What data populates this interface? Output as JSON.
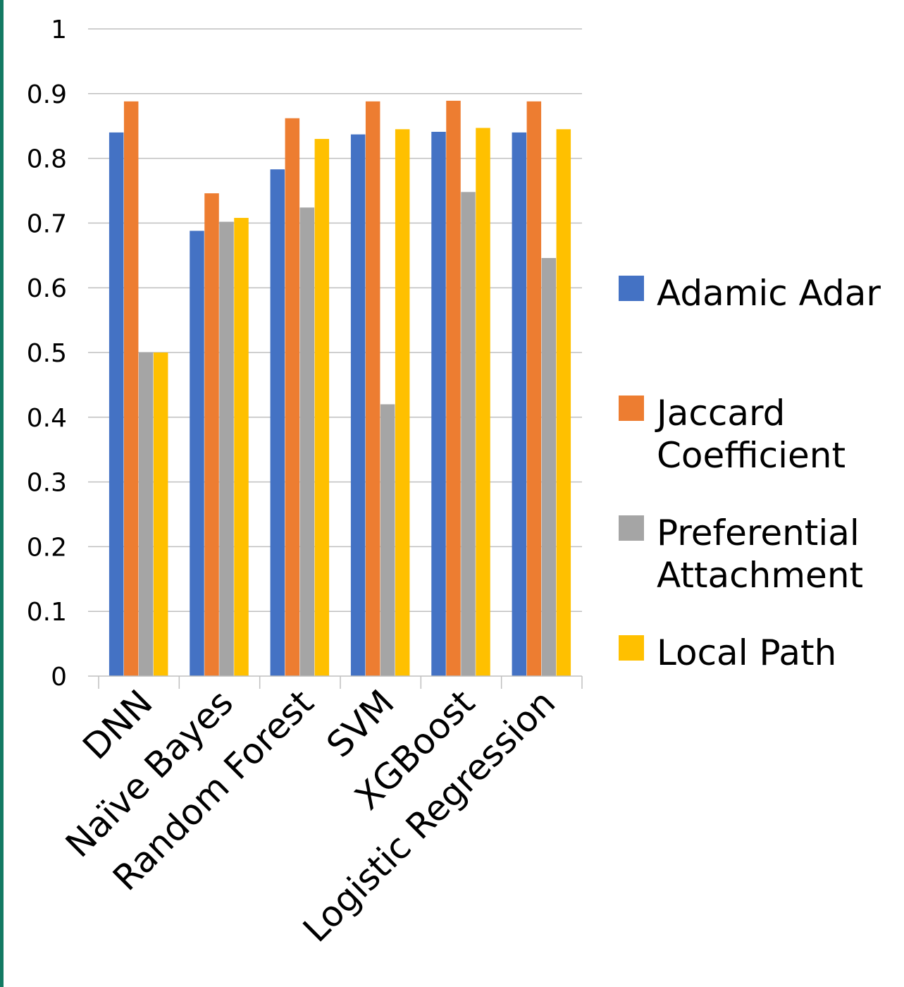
{
  "chart_data": {
    "type": "bar",
    "categories": [
      "DNN",
      "Naïve Bayes",
      "Random Forest",
      "SVM",
      "XGBoost",
      "Logistic Regression"
    ],
    "series": [
      {
        "name": "Adamic Adar",
        "color": "#4472c4",
        "values": [
          0.84,
          0.688,
          0.783,
          0.837,
          0.841,
          0.84
        ]
      },
      {
        "name": "Jaccard Coefficient",
        "color": "#ed7d31",
        "values": [
          0.888,
          0.746,
          0.862,
          0.888,
          0.889,
          0.888
        ]
      },
      {
        "name": "Preferential Attachment",
        "color": "#a5a5a5",
        "values": [
          0.5,
          0.702,
          0.724,
          0.42,
          0.748,
          0.646
        ]
      },
      {
        "name": "Local Path",
        "color": "#ffc000",
        "values": [
          0.5,
          0.708,
          0.83,
          0.845,
          0.847,
          0.845
        ]
      }
    ],
    "legend_lines": [
      [
        "Adamic Adar"
      ],
      [
        "Jaccard",
        "Coefficient"
      ],
      [
        "Preferential",
        "Attachment"
      ],
      [
        "Local Path"
      ]
    ],
    "y_ticks": [
      "0",
      "0.1",
      "0.2",
      "0.3",
      "0.4",
      "0.5",
      "0.6",
      "0.7",
      "0.8",
      "0.9",
      "1"
    ],
    "ylim": [
      0,
      1
    ],
    "grid": true,
    "legend_position": "right",
    "title": "",
    "xlabel": "",
    "ylabel": ""
  }
}
